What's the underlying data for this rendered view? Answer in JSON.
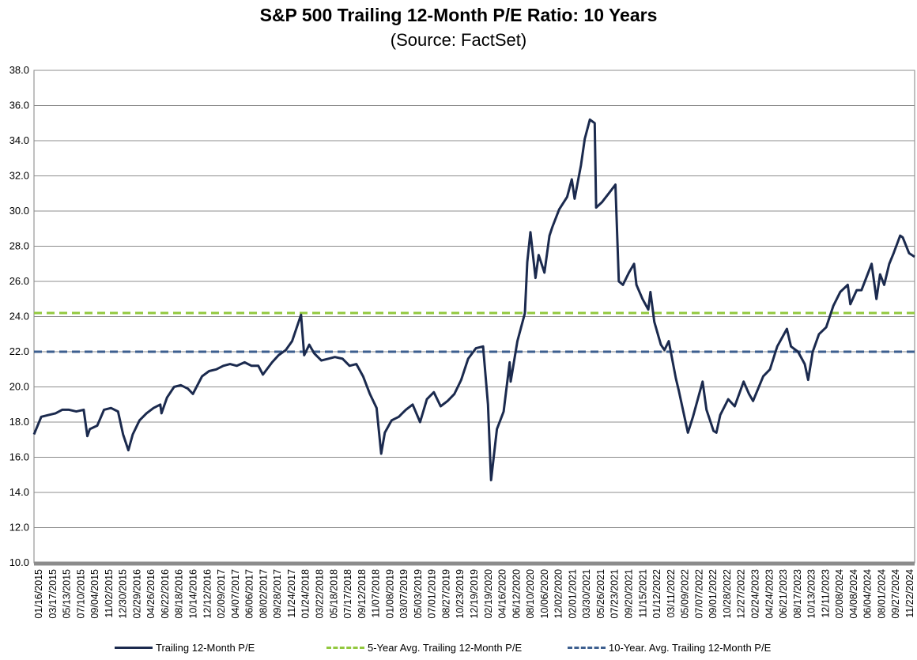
{
  "chart_data": {
    "type": "line",
    "title": "S&P 500 Trailing 12-Month P/E Ratio: 10 Years",
    "subtitle": "(Source: FactSet)",
    "ylim": [
      10,
      38
    ],
    "yticks": [
      "10.0",
      "12.0",
      "14.0",
      "16.0",
      "18.0",
      "20.0",
      "22.0",
      "24.0",
      "26.0",
      "28.0",
      "30.0",
      "32.0",
      "34.0",
      "36.0",
      "38.0"
    ],
    "x_tick_labels": [
      "01/16/2015",
      "03/17/2015",
      "05/13/2015",
      "07/10/2015",
      "09/04/2015",
      "11/02/2015",
      "12/30/2015",
      "02/29/2016",
      "04/26/2016",
      "06/22/2016",
      "08/18/2016",
      "10/14/2016",
      "12/12/2016",
      "02/09/2017",
      "04/07/2017",
      "06/06/2017",
      "08/02/2017",
      "09/28/2017",
      "11/24/2017",
      "01/24/2018",
      "03/22/2018",
      "05/18/2018",
      "07/17/2018",
      "09/12/2018",
      "11/07/2018",
      "01/08/2019",
      "03/07/2019",
      "05/03/2019",
      "07/01/2019",
      "08/27/2019",
      "10/23/2019",
      "12/19/2019",
      "02/19/2020",
      "04/16/2020",
      "06/12/2020",
      "08/10/2020",
      "10/06/2020",
      "12/02/2020",
      "02/01/2021",
      "03/30/2021",
      "05/26/2021",
      "07/23/2021",
      "09/20/2021",
      "11/15/2021",
      "01/12/2022",
      "03/11/2022",
      "05/09/2022",
      "07/07/2022",
      "09/01/2022",
      "10/28/2022",
      "12/27/2022",
      "02/24/2023",
      "04/24/2023",
      "06/21/2023",
      "08/17/2023",
      "10/13/2023",
      "12/11/2023",
      "02/08/2024",
      "04/08/2024",
      "06/04/2024",
      "08/01/2024",
      "09/27/2024",
      "11/22/2024"
    ],
    "x_range": [
      "2015-01-16",
      "2025-01-10"
    ],
    "series": [
      {
        "name": "Trailing 12-Month P/E",
        "color": "#1b2a4e",
        "style": "solid",
        "points": [
          [
            "2015-01-16",
            17.3
          ],
          [
            "2015-02-15",
            18.3
          ],
          [
            "2015-03-17",
            18.4
          ],
          [
            "2015-04-15",
            18.5
          ],
          [
            "2015-05-13",
            18.7
          ],
          [
            "2015-06-10",
            18.7
          ],
          [
            "2015-07-10",
            18.6
          ],
          [
            "2015-08-10",
            18.7
          ],
          [
            "2015-08-25",
            17.2
          ],
          [
            "2015-09-04",
            17.6
          ],
          [
            "2015-10-05",
            17.8
          ],
          [
            "2015-11-02",
            18.7
          ],
          [
            "2015-12-01",
            18.8
          ],
          [
            "2015-12-30",
            18.6
          ],
          [
            "2016-01-20",
            17.3
          ],
          [
            "2016-02-11",
            16.4
          ],
          [
            "2016-02-29",
            17.3
          ],
          [
            "2016-03-28",
            18.1
          ],
          [
            "2016-04-26",
            18.5
          ],
          [
            "2016-05-25",
            18.8
          ],
          [
            "2016-06-22",
            19.0
          ],
          [
            "2016-06-27",
            18.5
          ],
          [
            "2016-07-20",
            19.4
          ],
          [
            "2016-08-18",
            20.0
          ],
          [
            "2016-09-15",
            20.1
          ],
          [
            "2016-10-14",
            19.9
          ],
          [
            "2016-11-04",
            19.6
          ],
          [
            "2016-12-12",
            20.6
          ],
          [
            "2017-01-10",
            20.9
          ],
          [
            "2017-02-09",
            21.0
          ],
          [
            "2017-03-10",
            21.2
          ],
          [
            "2017-04-07",
            21.3
          ],
          [
            "2017-05-05",
            21.2
          ],
          [
            "2017-06-06",
            21.4
          ],
          [
            "2017-07-05",
            21.2
          ],
          [
            "2017-08-02",
            21.2
          ],
          [
            "2017-08-21",
            20.7
          ],
          [
            "2017-09-28",
            21.4
          ],
          [
            "2017-10-25",
            21.8
          ],
          [
            "2017-11-24",
            22.1
          ],
          [
            "2017-12-20",
            22.6
          ],
          [
            "2018-01-26",
            24.1
          ],
          [
            "2018-02-08",
            21.8
          ],
          [
            "2018-03-01",
            22.4
          ],
          [
            "2018-03-22",
            21.9
          ],
          [
            "2018-04-20",
            21.5
          ],
          [
            "2018-05-18",
            21.6
          ],
          [
            "2018-06-15",
            21.7
          ],
          [
            "2018-07-17",
            21.6
          ],
          [
            "2018-08-15",
            21.2
          ],
          [
            "2018-09-12",
            21.3
          ],
          [
            "2018-10-10",
            20.6
          ],
          [
            "2018-11-07",
            19.6
          ],
          [
            "2018-12-05",
            18.8
          ],
          [
            "2018-12-24",
            16.2
          ],
          [
            "2019-01-08",
            17.4
          ],
          [
            "2019-02-05",
            18.1
          ],
          [
            "2019-03-07",
            18.3
          ],
          [
            "2019-04-05",
            18.7
          ],
          [
            "2019-05-03",
            19.0
          ],
          [
            "2019-06-03",
            18.0
          ],
          [
            "2019-07-01",
            19.3
          ],
          [
            "2019-07-30",
            19.7
          ],
          [
            "2019-08-27",
            18.9
          ],
          [
            "2019-09-25",
            19.2
          ],
          [
            "2019-10-23",
            19.6
          ],
          [
            "2019-11-20",
            20.4
          ],
          [
            "2019-12-19",
            21.6
          ],
          [
            "2020-01-20",
            22.2
          ],
          [
            "2020-02-19",
            22.3
          ],
          [
            "2020-03-10",
            19.0
          ],
          [
            "2020-03-23",
            14.7
          ],
          [
            "2020-04-16",
            17.6
          ],
          [
            "2020-05-14",
            18.6
          ],
          [
            "2020-06-08",
            21.4
          ],
          [
            "2020-06-12",
            20.3
          ],
          [
            "2020-07-10",
            22.6
          ],
          [
            "2020-08-10",
            24.2
          ],
          [
            "2020-08-20",
            27.1
          ],
          [
            "2020-09-02",
            28.8
          ],
          [
            "2020-09-23",
            26.2
          ],
          [
            "2020-10-06",
            27.5
          ],
          [
            "2020-10-30",
            26.5
          ],
          [
            "2020-11-20",
            28.6
          ],
          [
            "2020-12-02",
            29.1
          ],
          [
            "2020-12-30",
            30.1
          ],
          [
            "2021-02-01",
            30.8
          ],
          [
            "2021-02-20",
            31.8
          ],
          [
            "2021-03-04",
            30.7
          ],
          [
            "2021-03-30",
            32.6
          ],
          [
            "2021-04-15",
            34.1
          ],
          [
            "2021-05-06",
            35.2
          ],
          [
            "2021-05-26",
            35.0
          ],
          [
            "2021-06-01",
            30.2
          ],
          [
            "2021-06-25",
            30.5
          ],
          [
            "2021-07-23",
            31.0
          ],
          [
            "2021-08-20",
            31.5
          ],
          [
            "2021-09-03",
            26.0
          ],
          [
            "2021-09-20",
            25.8
          ],
          [
            "2021-10-15",
            26.5
          ],
          [
            "2021-11-05",
            27.0
          ],
          [
            "2021-11-15",
            25.8
          ],
          [
            "2021-12-10",
            25.0
          ],
          [
            "2022-01-03",
            24.4
          ],
          [
            "2022-01-12",
            25.4
          ],
          [
            "2022-01-28",
            23.7
          ],
          [
            "2022-02-24",
            22.4
          ],
          [
            "2022-03-11",
            22.1
          ],
          [
            "2022-03-29",
            22.6
          ],
          [
            "2022-04-27",
            20.5
          ],
          [
            "2022-05-09",
            19.8
          ],
          [
            "2022-06-16",
            17.4
          ],
          [
            "2022-07-07",
            18.3
          ],
          [
            "2022-08-16",
            20.3
          ],
          [
            "2022-09-01",
            18.7
          ],
          [
            "2022-09-30",
            17.5
          ],
          [
            "2022-10-12",
            17.4
          ],
          [
            "2022-10-28",
            18.4
          ],
          [
            "2022-11-30",
            19.3
          ],
          [
            "2022-12-27",
            18.9
          ],
          [
            "2023-02-02",
            20.3
          ],
          [
            "2023-02-24",
            19.6
          ],
          [
            "2023-03-13",
            19.2
          ],
          [
            "2023-04-24",
            20.6
          ],
          [
            "2023-05-22",
            21.0
          ],
          [
            "2023-06-21",
            22.3
          ],
          [
            "2023-07-31",
            23.3
          ],
          [
            "2023-08-17",
            22.3
          ],
          [
            "2023-09-15",
            22.0
          ],
          [
            "2023-10-13",
            21.3
          ],
          [
            "2023-10-27",
            20.4
          ],
          [
            "2023-11-15",
            22.0
          ],
          [
            "2023-12-11",
            23.0
          ],
          [
            "2024-01-10",
            23.4
          ],
          [
            "2024-02-08",
            24.6
          ],
          [
            "2024-03-08",
            25.4
          ],
          [
            "2024-04-08",
            25.8
          ],
          [
            "2024-04-19",
            24.7
          ],
          [
            "2024-05-15",
            25.5
          ],
          [
            "2024-06-04",
            25.5
          ],
          [
            "2024-07-16",
            27.0
          ],
          [
            "2024-08-05",
            25.0
          ],
          [
            "2024-08-20",
            26.4
          ],
          [
            "2024-09-06",
            25.8
          ],
          [
            "2024-09-27",
            27.0
          ],
          [
            "2024-10-15",
            27.6
          ],
          [
            "2024-11-11",
            28.6
          ],
          [
            "2024-11-22",
            28.5
          ],
          [
            "2024-12-18",
            27.6
          ],
          [
            "2025-01-10",
            27.4
          ]
        ]
      },
      {
        "name": "5-Year Avg. Trailing 12-Month P/E",
        "color": "#92c83e",
        "style": "dashed",
        "value": 24.2
      },
      {
        "name": "10-Year. Avg. Trailing 12-Month P/E",
        "color": "#3d5f8f",
        "style": "dashed",
        "value": 22.0
      }
    ],
    "grid": true,
    "legend_position": "bottom"
  }
}
